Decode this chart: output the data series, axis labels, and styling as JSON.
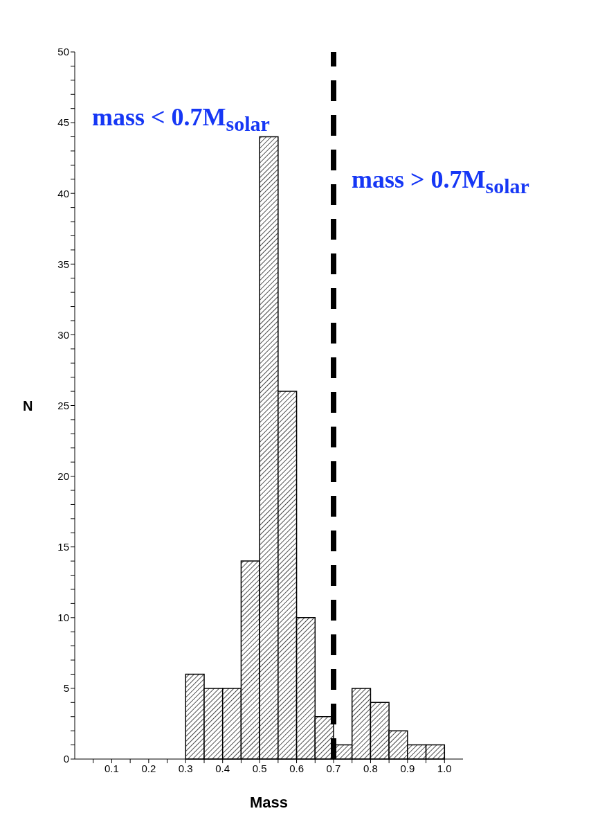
{
  "chart_data": {
    "type": "histogram",
    "xlabel": "Mass",
    "ylabel": "N",
    "bins": [
      0.3,
      0.35,
      0.4,
      0.45,
      0.5,
      0.55,
      0.6,
      0.65,
      0.7,
      0.75,
      0.8,
      0.85,
      0.9,
      0.95,
      1.0
    ],
    "values": [
      6,
      5,
      5,
      14,
      44,
      26,
      10,
      3,
      1,
      5,
      4,
      2,
      1,
      1
    ],
    "color": "#000000",
    "xlim": [
      0,
      1.05
    ],
    "xticks": [
      {
        "value": 0.05,
        "label": null
      },
      0.1,
      {
        "value": 0.15,
        "label": null
      },
      0.2,
      {
        "value": 0.25,
        "label": null
      },
      0.3,
      {
        "value": 0.35,
        "label": null
      },
      0.4,
      {
        "value": 0.45,
        "label": null
      },
      0.5,
      {
        "value": 0.55,
        "label": null
      },
      0.6,
      {
        "value": 0.65,
        "label": null
      },
      0.7,
      {
        "value": 0.75,
        "label": null
      },
      0.8,
      {
        "value": 0.85,
        "label": null
      },
      0.9,
      {
        "value": 0.95,
        "label": null
      },
      {
        "value": 1,
        "label": "1.0"
      }
    ],
    "ylim": [
      0,
      50
    ],
    "yticks": [
      0,
      {
        "value": 1,
        "label": null
      },
      {
        "value": 2,
        "label": null
      },
      {
        "value": 3,
        "label": null
      },
      {
        "value": 4,
        "label": null
      },
      5,
      {
        "value": 6,
        "label": null
      },
      {
        "value": 7,
        "label": null
      },
      {
        "value": 8,
        "label": null
      },
      {
        "value": 9,
        "label": null
      },
      10,
      {
        "value": 11,
        "label": null
      },
      {
        "value": 12,
        "label": null
      },
      {
        "value": 13,
        "label": null
      },
      {
        "value": 14,
        "label": null
      },
      15,
      {
        "value": 16,
        "label": null
      },
      {
        "value": 17,
        "label": null
      },
      {
        "value": 18,
        "label": null
      },
      {
        "value": 19,
        "label": null
      },
      20,
      {
        "value": 21,
        "label": null
      },
      {
        "value": 22,
        "label": null
      },
      {
        "value": 23,
        "label": null
      },
      {
        "value": 24,
        "label": null
      },
      25,
      {
        "value": 26,
        "label": null
      },
      {
        "value": 27,
        "label": null
      },
      {
        "value": 28,
        "label": null
      },
      {
        "value": 29,
        "label": null
      },
      30,
      {
        "value": 31,
        "label": null
      },
      {
        "value": 32,
        "label": null
      },
      {
        "value": 33,
        "label": null
      },
      {
        "value": 34,
        "label": null
      },
      35,
      {
        "value": 36,
        "label": null
      },
      {
        "value": 37,
        "label": null
      },
      {
        "value": 38,
        "label": null
      },
      {
        "value": 39,
        "label": null
      },
      40,
      {
        "value": 41,
        "label": null
      },
      {
        "value": 42,
        "label": null
      },
      {
        "value": 43,
        "label": null
      },
      {
        "value": 44,
        "label": null
      },
      45,
      {
        "value": 46,
        "label": null
      },
      {
        "value": 47,
        "label": null
      },
      {
        "value": 48,
        "label": null
      },
      {
        "value": 49,
        "label": null
      },
      50
    ],
    "ref_lines": [
      {
        "axis": "x",
        "value": 0.7,
        "color": "#000000",
        "line_style": "dashed"
      }
    ],
    "annotations": [
      "mass < 0.7M$_{solar}$",
      "mass > 0.7M$_{solar}$"
    ]
  }
}
